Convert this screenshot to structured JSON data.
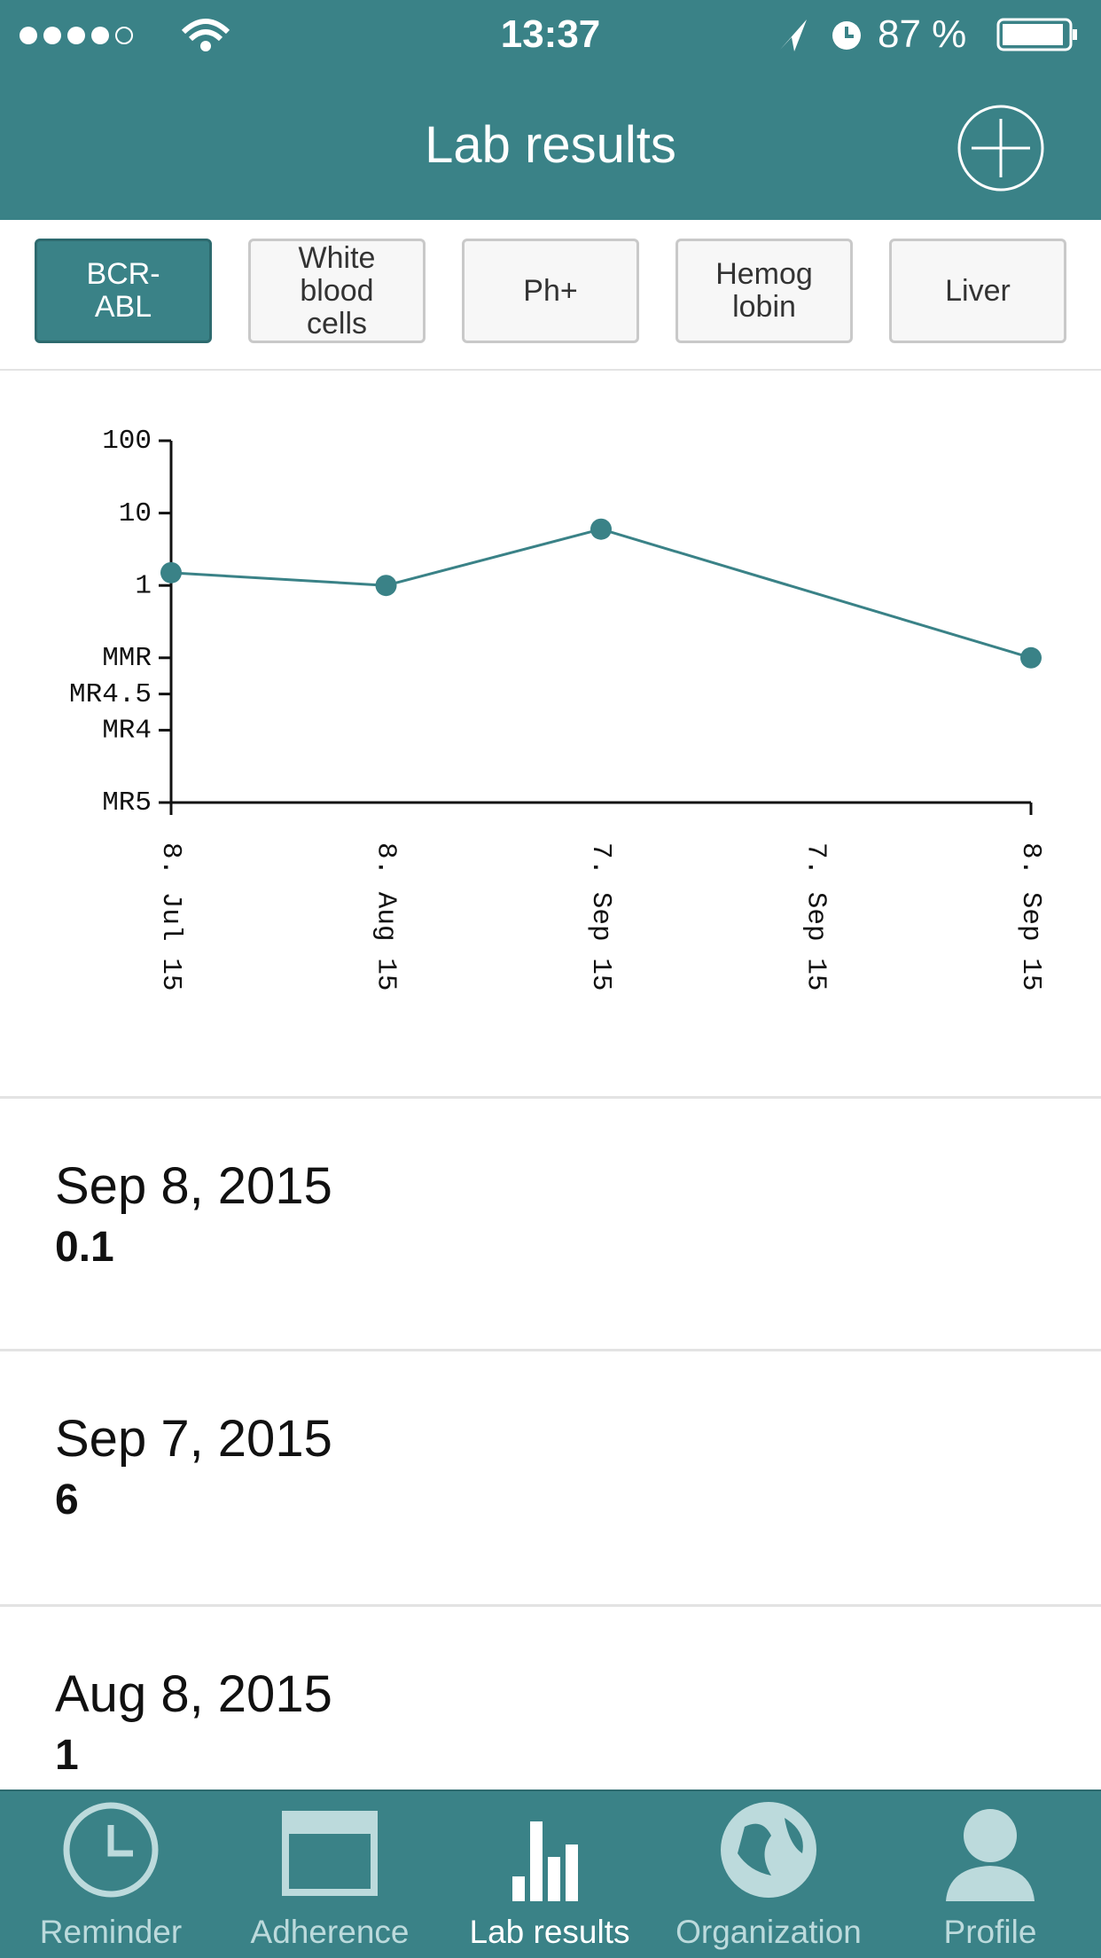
{
  "status_bar": {
    "time": "13:37",
    "battery": "87 %"
  },
  "header": {
    "title": "Lab results"
  },
  "tabs": [
    "BCR-ABL",
    "White blood cells",
    "Ph+",
    "Hemog lobin",
    "Liver"
  ],
  "chart_data": {
    "type": "line",
    "categories": [
      "8. Jul 15",
      "8. Aug 15",
      "7. Sep 15",
      "7. Sep 15",
      "8. Sep 15"
    ],
    "series": [
      {
        "color": "#3a8287",
        "values": [
          1.5,
          1,
          6,
          null,
          0.1
        ]
      }
    ],
    "ylim": [
      0.001,
      100
    ],
    "log_scale": true,
    "yticks": [
      100,
      10,
      1,
      {
        "value": 0.1,
        "label": "MMR"
      },
      {
        "value": 0.0316,
        "label": "MR4.5"
      },
      {
        "value": 0.01,
        "label": "MR4"
      },
      {
        "value": 0.001,
        "label": "MR5"
      }
    ]
  },
  "list": [
    {
      "date": "Sep 8, 2015",
      "value": "0.1"
    },
    {
      "date": "Sep 7, 2015",
      "value": "6"
    },
    {
      "date": "Aug 8, 2015",
      "value": "1"
    }
  ],
  "tab_bar": [
    "Reminder",
    "Adherence",
    "Lab results",
    "Organization",
    "Profile"
  ]
}
